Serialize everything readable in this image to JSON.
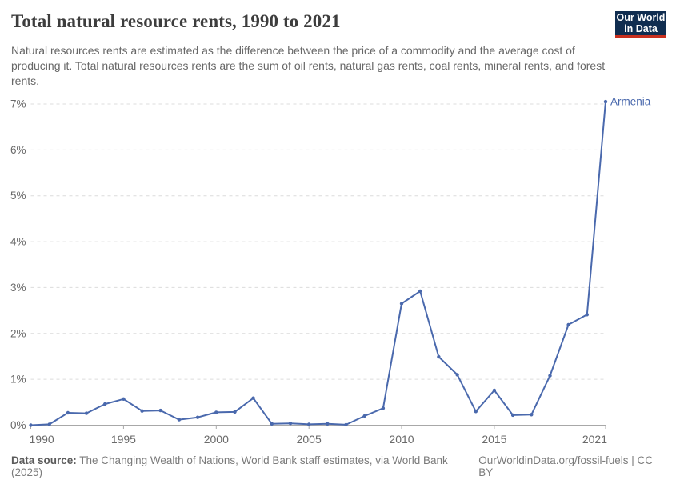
{
  "header": {
    "title": "Total natural resource rents, 1990 to 2021",
    "subtitle": "Natural resources rents are estimated as the difference between the price of a commodity and the average cost of producing it. Total natural resources rents are the sum of oil rents, natural gas rents, coal rents, mineral rents, and forest rents.",
    "logo": {
      "line1": "Our World",
      "line2": "in Data",
      "bg_color": "#102d50",
      "accent_color": "#c9301f"
    }
  },
  "chart_data": {
    "type": "line",
    "title": "Total natural resource rents, 1990 to 2021",
    "unit": "%",
    "x": [
      1990,
      1991,
      1992,
      1993,
      1994,
      1995,
      1996,
      1997,
      1998,
      1999,
      2000,
      2001,
      2002,
      2003,
      2004,
      2005,
      2006,
      2007,
      2008,
      2009,
      2010,
      2011,
      2012,
      2013,
      2014,
      2015,
      2016,
      2017,
      2018,
      2019,
      2020,
      2021
    ],
    "series": [
      {
        "name": "Armenia",
        "values": [
          0,
          0.02,
          0.27,
          0.26,
          0.46,
          0.57,
          0.31,
          0.32,
          0.12,
          0.17,
          0.28,
          0.29,
          0.59,
          0.03,
          0.04,
          0.02,
          0.03,
          0.01,
          0.2,
          0.37,
          2.65,
          2.92,
          1.49,
          1.1,
          0.3,
          0.76,
          0.22,
          0.23,
          1.08,
          2.19,
          2.41,
          7.05
        ]
      }
    ],
    "xlabel": "",
    "ylabel": "",
    "ylim": [
      0,
      7
    ],
    "yticks": [
      0,
      1,
      2,
      3,
      4,
      5,
      6,
      7
    ],
    "xticks": [
      1990,
      1995,
      2000,
      2005,
      2010,
      2015,
      2021
    ],
    "grid": "horizontal-dashed",
    "legend_position": "end-of-line-label",
    "line_color": "#4a69ad",
    "grid_color": "#dcdcdc",
    "axis_color": "#a8a8a8"
  },
  "footer": {
    "source_label": "Data source:",
    "source_text": " The Changing Wealth of Nations, World Bank staff estimates, via World Bank (2025)",
    "credit": "OurWorldinData.org/fossil-fuels | CC BY"
  }
}
